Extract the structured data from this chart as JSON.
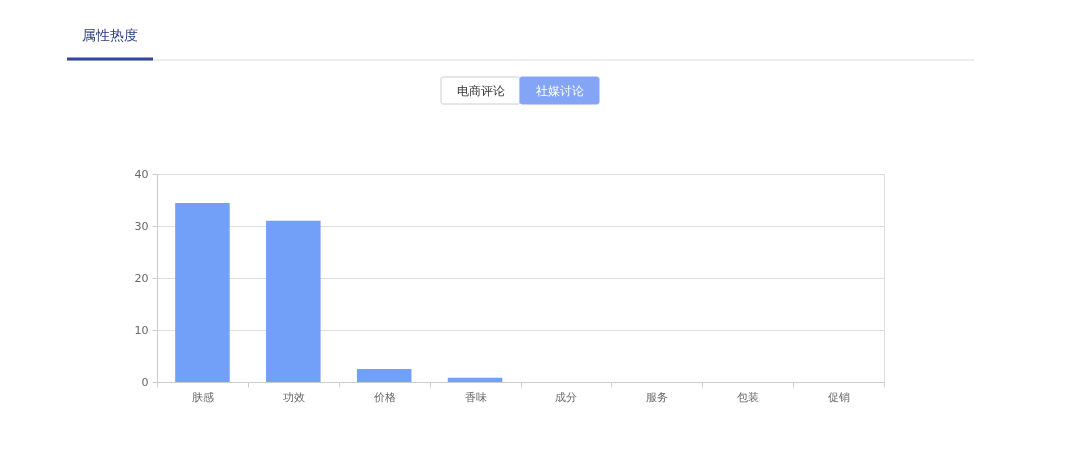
{
  "chart_data": {
    "type": "bar",
    "title": "属性热度",
    "annotations": [
      "电商评论",
      "社媒讨论"
    ],
    "categories": [
      "肤感",
      "功效",
      "价格",
      "香味",
      "成分",
      "服务",
      "包装",
      "促销"
    ],
    "values": [
      34.4,
      31.0,
      2.5,
      0.8,
      0,
      0,
      0,
      0
    ],
    "color": "#729ff8",
    "ylim": [
      0,
      40
    ],
    "yticks": [
      0,
      10,
      20,
      30,
      40
    ],
    "grid": "y"
  }
}
